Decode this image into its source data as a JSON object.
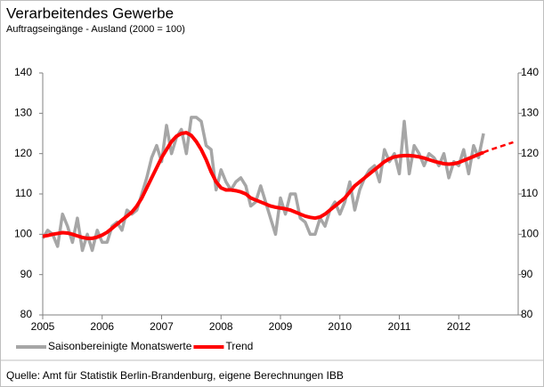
{
  "chart_data": {
    "type": "line",
    "title": "Verarbeitendes Gewerbe",
    "subtitle": "Auftragseingänge  - Ausland (2000 = 100)",
    "source": "Quelle: Amt für Statistik Berlin-Brandenburg, eigene Berechnungen IBB",
    "x": [
      2005,
      2005.083,
      2005.167,
      2005.25,
      2005.333,
      2005.417,
      2005.5,
      2005.583,
      2005.667,
      2005.75,
      2005.833,
      2005.917,
      2006,
      2006.083,
      2006.167,
      2006.25,
      2006.333,
      2006.417,
      2006.5,
      2006.583,
      2006.667,
      2006.75,
      2006.833,
      2006.917,
      2007,
      2007.083,
      2007.167,
      2007.25,
      2007.333,
      2007.417,
      2007.5,
      2007.583,
      2007.667,
      2007.75,
      2007.833,
      2007.917,
      2008,
      2008.083,
      2008.167,
      2008.25,
      2008.333,
      2008.417,
      2008.5,
      2008.583,
      2008.667,
      2008.75,
      2008.833,
      2008.917,
      2009,
      2009.083,
      2009.167,
      2009.25,
      2009.333,
      2009.417,
      2009.5,
      2009.583,
      2009.667,
      2009.75,
      2009.833,
      2009.917,
      2010,
      2010.083,
      2010.167,
      2010.25,
      2010.333,
      2010.417,
      2010.5,
      2010.583,
      2010.667,
      2010.75,
      2010.833,
      2010.917,
      2011,
      2011.083,
      2011.167,
      2011.25,
      2011.333,
      2011.417,
      2011.5,
      2011.583,
      2011.667,
      2011.75,
      2011.833,
      2011.917,
      2012,
      2012.083,
      2012.167,
      2012.25,
      2012.333,
      2012.417,
      2012.5,
      2012.583,
      2012.667,
      2012.75,
      2012.833,
      2012.917
    ],
    "series": [
      {
        "name": "Saisonbereinigte Monatswerte",
        "color": "#a6a6a6",
        "values": [
          99,
          101,
          100,
          97,
          105,
          102,
          98,
          104,
          96,
          100,
          96,
          101,
          98,
          98,
          102,
          103,
          101,
          106,
          105,
          106,
          110,
          114,
          119,
          122,
          118,
          127,
          120,
          124,
          126,
          120,
          129,
          129,
          128,
          122,
          121,
          111,
          116,
          113,
          111,
          113,
          114,
          112,
          107,
          108,
          112,
          108,
          104,
          100,
          109,
          105,
          110,
          110,
          104,
          103,
          100,
          100,
          104,
          102,
          106,
          108,
          105,
          108,
          113,
          106,
          111,
          114,
          116,
          117,
          113,
          121,
          118,
          120,
          115,
          128,
          115,
          122,
          120,
          117,
          120,
          119,
          117,
          120,
          114,
          118,
          117,
          121,
          115,
          122,
          119,
          125,
          null,
          null,
          null,
          null,
          null,
          null
        ]
      },
      {
        "name": "Trend",
        "color": "#ff0000",
        "values": [
          99.5,
          99.7,
          100,
          100.2,
          100.4,
          100.3,
          100,
          99.6,
          99.2,
          99,
          99,
          99.3,
          99.8,
          100.5,
          101.5,
          102.5,
          103.5,
          104.5,
          105.5,
          107,
          109,
          111.5,
          114,
          116.5,
          119,
          121,
          123,
          124.3,
          125,
          125.2,
          124.5,
          123,
          121,
          118.5,
          115.5,
          113,
          111.5,
          111,
          111,
          110.8,
          110.5,
          110,
          109,
          108.5,
          108,
          107.5,
          107,
          106.7,
          106.5,
          106.3,
          106,
          105.5,
          105,
          104.5,
          104.2,
          104,
          104.3,
          105,
          106,
          107,
          108,
          109,
          110.5,
          112,
          113,
          114,
          115,
          116,
          117,
          118,
          118.7,
          119.2,
          119.4,
          119.5,
          119.5,
          119.4,
          119.2,
          118.9,
          118.5,
          118.1,
          117.8,
          117.5,
          117.4,
          117.5,
          117.8,
          118.3,
          118.8,
          119.3,
          119.8,
          120.3,
          null,
          null,
          null,
          null,
          null,
          null
        ],
        "projection": [
          null,
          null,
          null,
          null,
          null,
          null,
          null,
          null,
          null,
          null,
          null,
          null,
          null,
          null,
          null,
          null,
          null,
          null,
          null,
          null,
          null,
          null,
          null,
          null,
          null,
          null,
          null,
          null,
          null,
          null,
          null,
          null,
          null,
          null,
          null,
          null,
          null,
          null,
          null,
          null,
          null,
          null,
          null,
          null,
          null,
          null,
          null,
          null,
          null,
          null,
          null,
          null,
          null,
          null,
          null,
          null,
          null,
          null,
          null,
          null,
          null,
          null,
          null,
          null,
          null,
          null,
          null,
          null,
          null,
          null,
          null,
          null,
          null,
          null,
          null,
          null,
          null,
          null,
          null,
          null,
          null,
          null,
          null,
          null,
          null,
          null,
          null,
          null,
          null,
          120.3,
          120.8,
          121.2,
          121.6,
          122,
          122.4,
          122.8
        ]
      }
    ],
    "xlim": [
      2005,
      2013
    ],
    "xticks": [
      2005,
      2006,
      2007,
      2008,
      2009,
      2010,
      2011,
      2012
    ],
    "ylim": [
      80,
      140
    ],
    "yticks": [
      80,
      90,
      100,
      110,
      120,
      130,
      140
    ],
    "y2lim": [
      80,
      140
    ],
    "y2ticks": [
      80,
      90,
      100,
      110,
      120,
      130,
      140
    ],
    "grid": false,
    "legend": "bottom"
  }
}
